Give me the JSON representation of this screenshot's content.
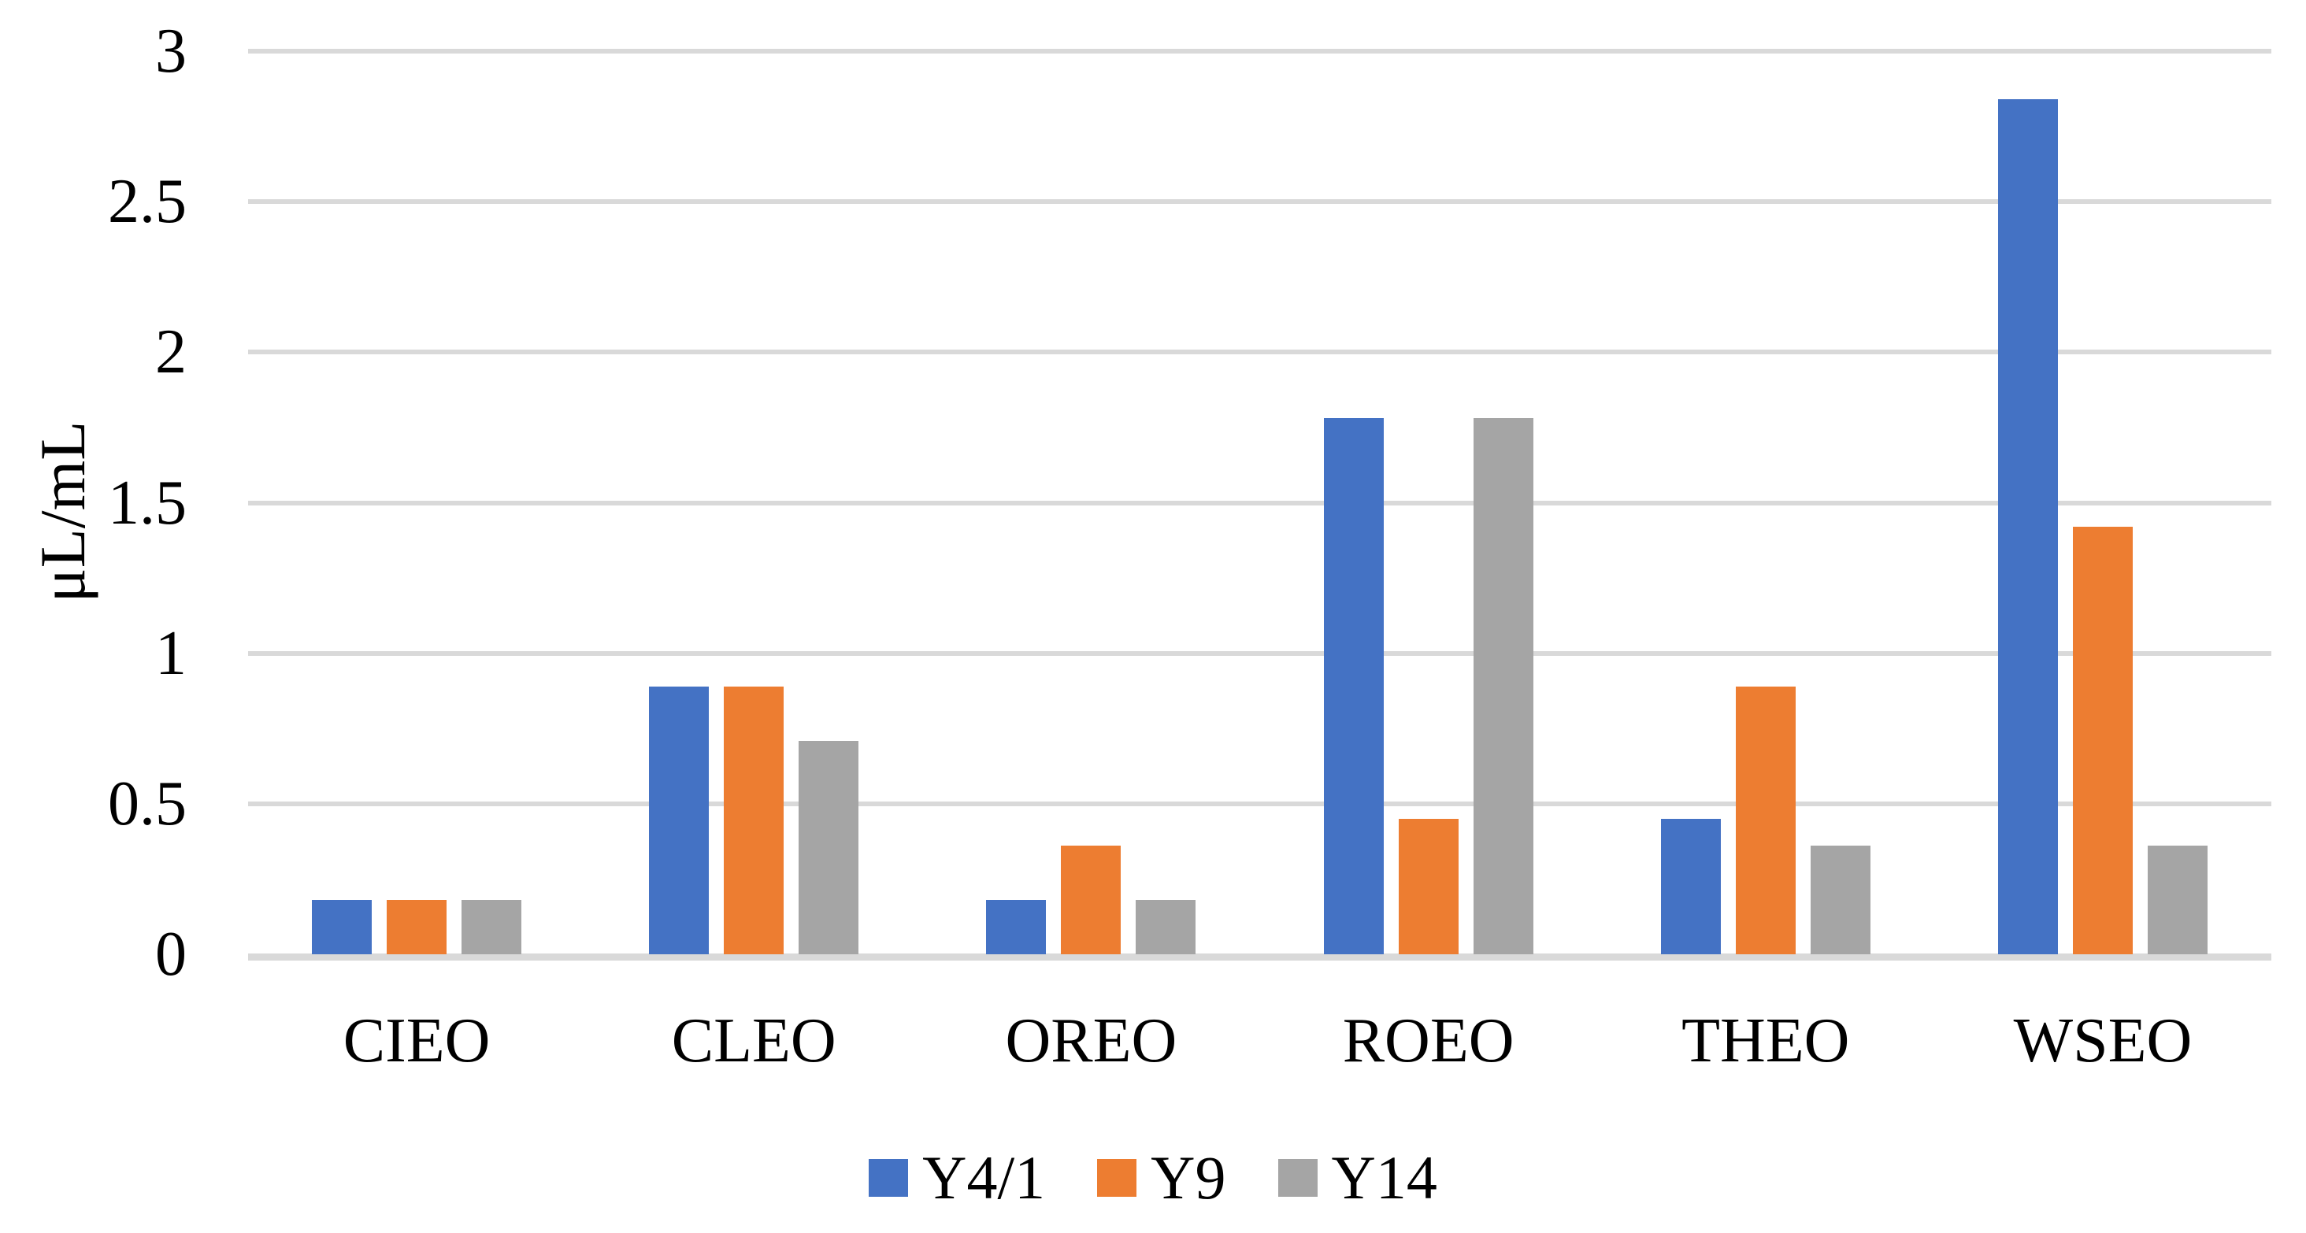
{
  "chart_data": {
    "type": "bar",
    "title": "",
    "xlabel": "",
    "ylabel": "μL/mL",
    "categories": [
      "CIEO",
      "CLEO",
      "OREO",
      "ROEO",
      "THEO",
      "WSEO"
    ],
    "series": [
      {
        "name": "Y4/1",
        "color": "#4472C4",
        "values": [
          0.18,
          0.89,
          0.18,
          1.78,
          0.45,
          2.84
        ]
      },
      {
        "name": "Y9",
        "color": "#ED7D31",
        "values": [
          0.18,
          0.89,
          0.36,
          0.45,
          0.89,
          1.42
        ]
      },
      {
        "name": "Y14",
        "color": "#A5A5A5",
        "values": [
          0.18,
          0.71,
          0.18,
          1.78,
          0.36,
          0.36
        ]
      }
    ],
    "ylim": [
      0,
      3
    ],
    "ytick_values": [
      0,
      0.5,
      1,
      1.5,
      2,
      2.5,
      3
    ],
    "ytick_labels": [
      "0",
      "0.5",
      "1",
      "1.5",
      "2",
      "2.5",
      "3"
    ],
    "grid": true,
    "legend_position": "bottom",
    "colors": {
      "gridline": "#D9D9D9",
      "baseline": "#D9D9D9",
      "text": "#000000",
      "background": "#FFFFFF"
    }
  }
}
